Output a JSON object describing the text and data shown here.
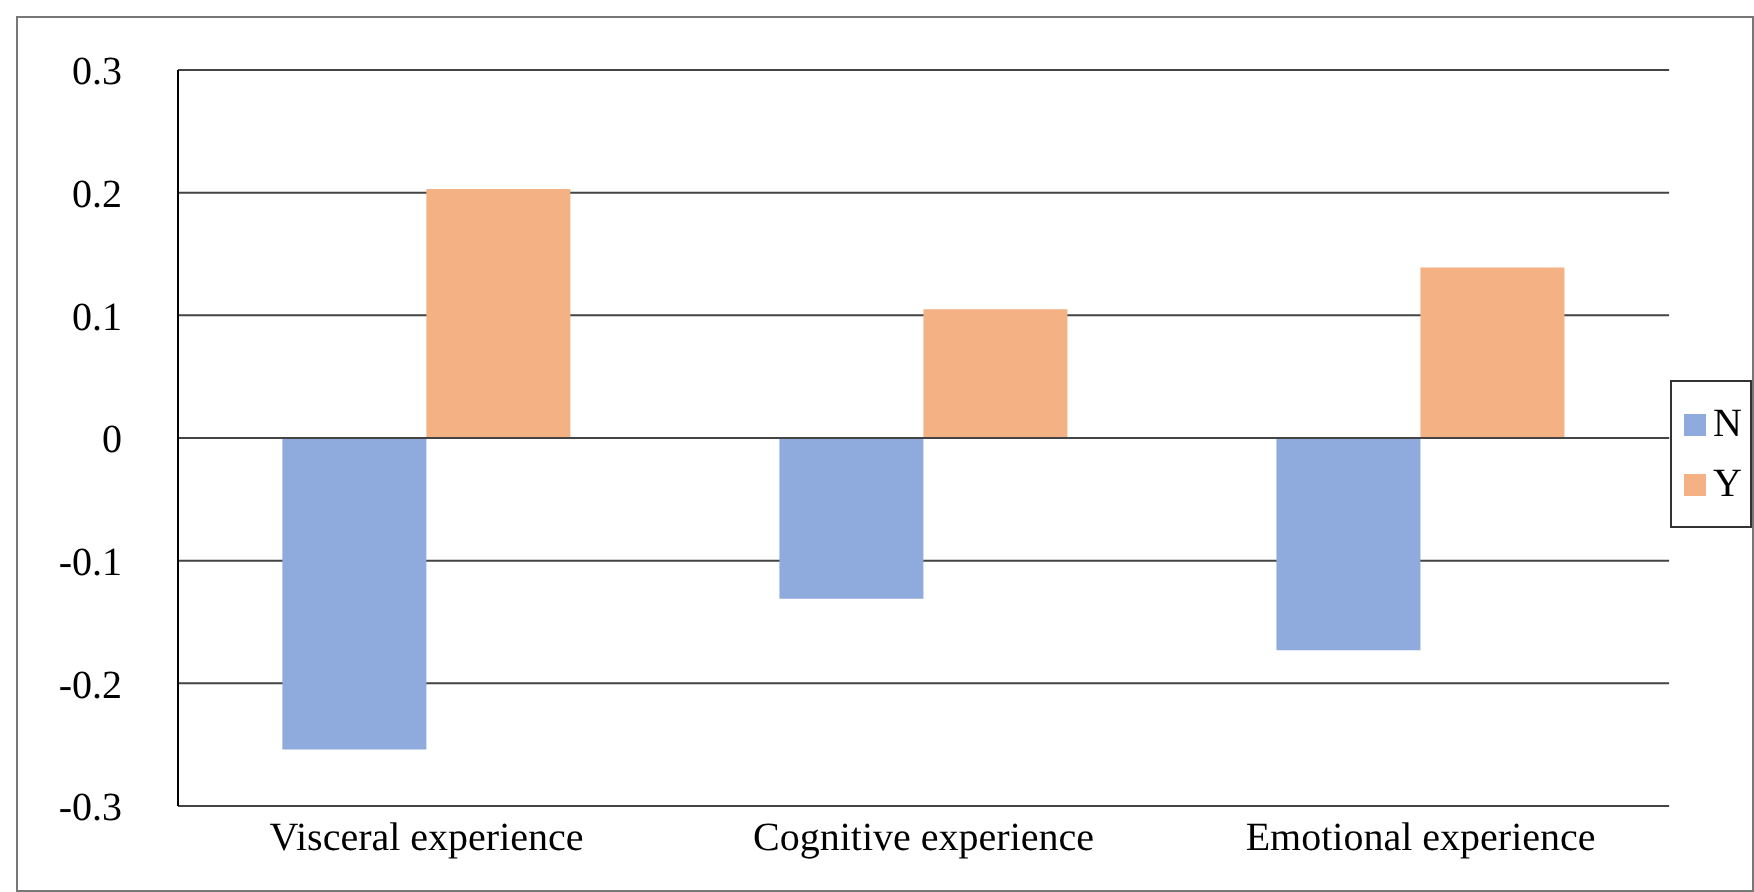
{
  "chart_data": {
    "type": "bar",
    "categories": [
      "Visceral experience",
      "Cognitive experience",
      "Emotional experience"
    ],
    "series": [
      {
        "name": "N",
        "color": "#8faadc",
        "values": [
          -0.254,
          -0.131,
          -0.173
        ]
      },
      {
        "name": "Y",
        "color": "#f4b183",
        "values": [
          0.203,
          0.105,
          0.139
        ]
      }
    ],
    "ylim": [
      -0.3,
      0.3
    ],
    "yticks": [
      -0.3,
      -0.2,
      -0.1,
      0,
      0.1,
      0.2,
      0.3
    ],
    "grid": "y",
    "legend": "right"
  }
}
